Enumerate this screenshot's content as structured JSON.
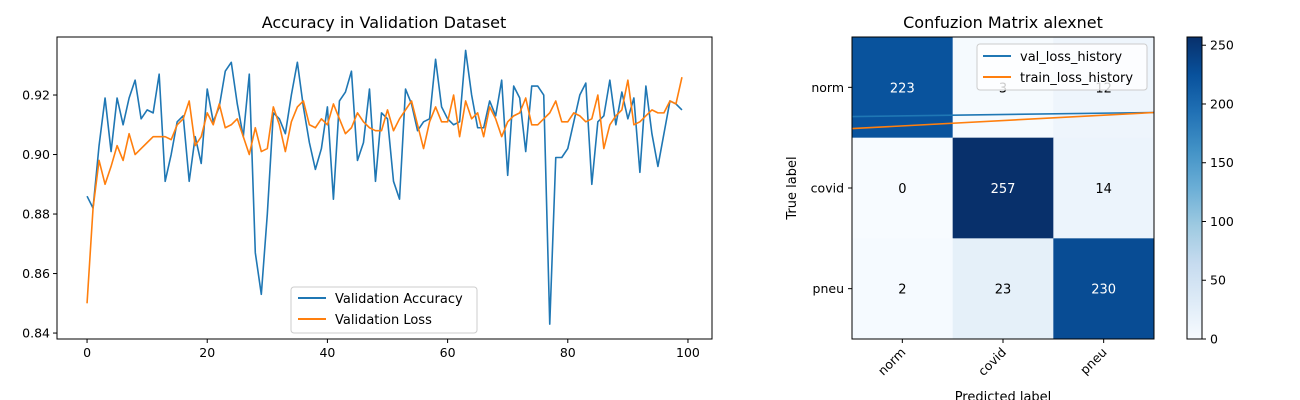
{
  "chart_data": [
    {
      "type": "line",
      "title": "Accuracy in Validation Dataset",
      "xlabel": "",
      "ylabel": "",
      "xlim": [
        -5,
        104
      ],
      "ylim": [
        0.838,
        0.9395
      ],
      "x_ticks": [
        0,
        20,
        40,
        60,
        80,
        100
      ],
      "y_ticks": [
        0.84,
        0.86,
        0.88,
        0.9,
        0.92
      ],
      "y_tick_labels": [
        "0.84",
        "0.86",
        "0.88",
        "0.90",
        "0.92"
      ],
      "grid": false,
      "legend_position": "lower-center",
      "series": [
        {
          "name": "Validation Accuracy",
          "color": "#1f77b4",
          "values": [
            0.886,
            0.882,
            0.903,
            0.919,
            0.901,
            0.919,
            0.91,
            0.919,
            0.925,
            0.912,
            0.915,
            0.914,
            0.927,
            0.891,
            0.9,
            0.911,
            0.913,
            0.891,
            0.906,
            0.897,
            0.922,
            0.911,
            0.916,
            0.928,
            0.931,
            0.917,
            0.906,
            0.927,
            0.867,
            0.853,
            0.88,
            0.914,
            0.912,
            0.907,
            0.92,
            0.931,
            0.916,
            0.904,
            0.895,
            0.902,
            0.916,
            0.885,
            0.918,
            0.921,
            0.928,
            0.898,
            0.904,
            0.922,
            0.891,
            0.914,
            0.912,
            0.891,
            0.885,
            0.922,
            0.917,
            0.908,
            0.911,
            0.912,
            0.932,
            0.916,
            0.912,
            0.91,
            0.911,
            0.935,
            0.92,
            0.909,
            0.909,
            0.918,
            0.913,
            0.925,
            0.893,
            0.923,
            0.919,
            0.901,
            0.923,
            0.923,
            0.92,
            0.843,
            0.899,
            0.899,
            0.902,
            0.911,
            0.92,
            0.924,
            0.89,
            0.911,
            0.913,
            0.925,
            0.91,
            0.921,
            0.912,
            0.919,
            0.894,
            0.923,
            0.907,
            0.896,
            0.907,
            0.918,
            0.917,
            0.915
          ]
        },
        {
          "name": "Validation Loss",
          "color": "#ff7f0e",
          "values": [
            0.85,
            0.882,
            0.898,
            0.89,
            0.896,
            0.903,
            0.898,
            0.907,
            0.9,
            0.902,
            0.904,
            0.906,
            0.906,
            0.906,
            0.905,
            0.91,
            0.912,
            0.918,
            0.903,
            0.906,
            0.914,
            0.91,
            0.917,
            0.909,
            0.91,
            0.912,
            0.906,
            0.9,
            0.909,
            0.901,
            0.902,
            0.916,
            0.91,
            0.901,
            0.911,
            0.916,
            0.918,
            0.91,
            0.909,
            0.912,
            0.91,
            0.917,
            0.912,
            0.907,
            0.909,
            0.914,
            0.911,
            0.909,
            0.908,
            0.908,
            0.915,
            0.908,
            0.912,
            0.915,
            0.918,
            0.91,
            0.902,
            0.911,
            0.916,
            0.911,
            0.911,
            0.92,
            0.906,
            0.918,
            0.912,
            0.914,
            0.906,
            0.916,
            0.912,
            0.906,
            0.911,
            0.913,
            0.914,
            0.919,
            0.91,
            0.91,
            0.912,
            0.914,
            0.918,
            0.911,
            0.911,
            0.914,
            0.913,
            0.911,
            0.912,
            0.92,
            0.902,
            0.91,
            0.913,
            0.915,
            0.925,
            0.91,
            0.911,
            0.913,
            0.915,
            0.914,
            0.914,
            0.918,
            0.917,
            0.926
          ]
        }
      ]
    },
    {
      "type": "heatmap",
      "title": "Confuzion Matrix alexnet",
      "xlabel": "Predicted label",
      "ylabel": "True label",
      "x_categories": [
        "norm",
        "covid",
        "pneu"
      ],
      "y_categories": [
        "norm",
        "covid",
        "pneu"
      ],
      "matrix": [
        [
          223,
          3,
          12
        ],
        [
          0,
          257,
          14
        ],
        [
          2,
          23,
          230
        ]
      ],
      "colormap": "Blues",
      "vmin": 0,
      "vmax": 257,
      "colorbar_ticks": [
        0,
        50,
        100,
        150,
        200,
        250
      ],
      "legend_position": "upper-right",
      "overlay_series": [
        {
          "name": "val_loss_history",
          "color": "#1f77b4",
          "x": [
            -0.5,
            2.5
          ],
          "values": [
            0.29,
            0.25
          ]
        },
        {
          "name": "train_loss_history",
          "color": "#ff7f0e",
          "x": [
            -0.5,
            2.5
          ],
          "values": [
            0.41,
            0.25
          ]
        }
      ]
    }
  ]
}
